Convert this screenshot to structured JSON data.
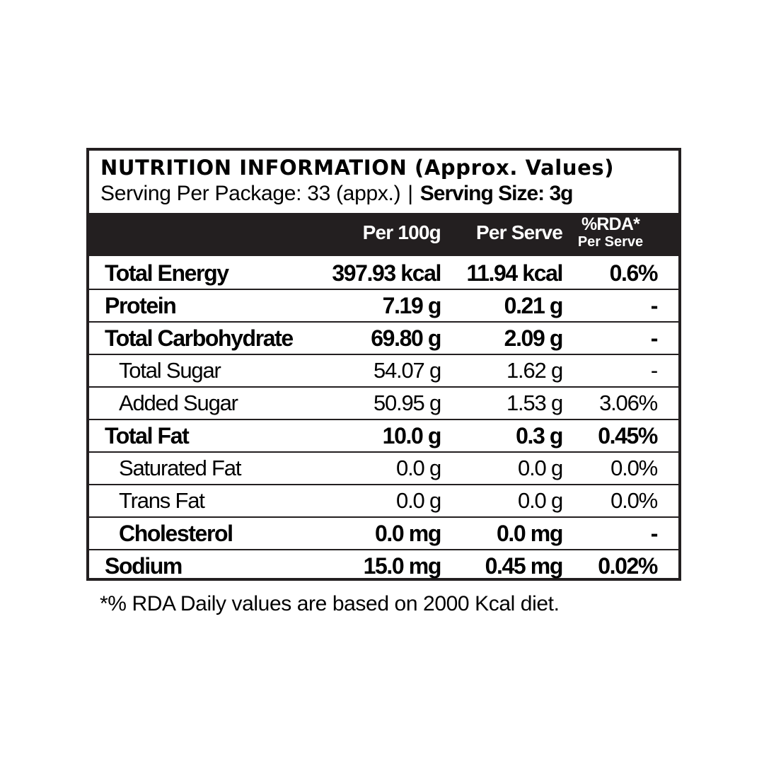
{
  "panel": {
    "title": "NUTRITION INFORMATION (Approx. Values)",
    "serving_per_package": "Serving Per Package: 33 (appx.)",
    "separator": "|",
    "serving_size": "Serving Size: 3g"
  },
  "columns": {
    "per_100g": "Per 100g",
    "per_serve": "Per Serve",
    "rda": "%RDA*",
    "rda_sub": "Per Serve"
  },
  "rows": [
    {
      "label": "Total Energy",
      "per_100g": "397.93 kcal",
      "per_serve": "11.94 kcal",
      "rda": "0.6%"
    },
    {
      "label": "Protein",
      "per_100g": "7.19 g",
      "per_serve": "0.21 g",
      "rda": "-"
    },
    {
      "label": "Total Carbohydrate",
      "per_100g": "69.80 g",
      "per_serve": "2.09 g",
      "rda": "-"
    },
    {
      "label": "Total Sugar",
      "per_100g": "54.07 g",
      "per_serve": "1.62 g",
      "rda": "-"
    },
    {
      "label": "Added Sugar",
      "per_100g": "50.95 g",
      "per_serve": "1.53 g",
      "rda": "3.06%"
    },
    {
      "label": "Total Fat",
      "per_100g": "10.0 g",
      "per_serve": "0.3 g",
      "rda": "0.45%"
    },
    {
      "label": "Saturated Fat",
      "per_100g": "0.0 g",
      "per_serve": "0.0 g",
      "rda": "0.0%"
    },
    {
      "label": "Trans Fat",
      "per_100g": "0.0 g",
      "per_serve": "0.0 g",
      "rda": "0.0%"
    },
    {
      "label": "Cholesterol",
      "per_100g": "0.0 mg",
      "per_serve": "0.0 mg",
      "rda": "-"
    },
    {
      "label": "Sodium",
      "per_100g": "15.0 mg",
      "per_serve": "0.45 mg",
      "rda": "0.02%"
    }
  ],
  "footnote": "*% RDA Daily values are based on 2000 Kcal diet.",
  "colors": {
    "border": "#231f20",
    "header_bg": "#231f20",
    "header_text": "#ffffff",
    "text": "#000000",
    "background": "#ffffff"
  }
}
